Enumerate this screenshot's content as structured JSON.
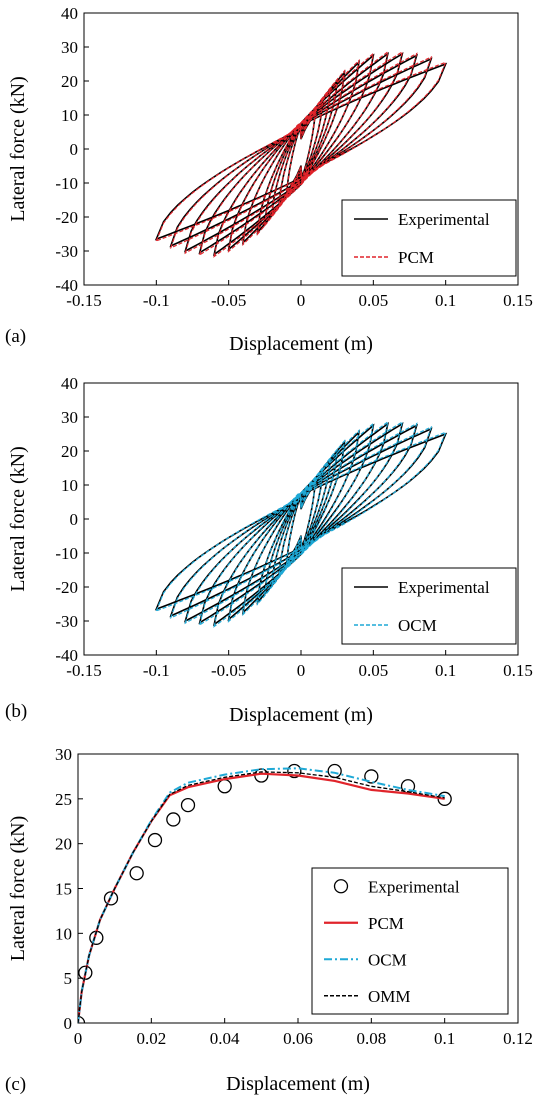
{
  "chart_data": [
    {
      "panel_label": "(a)",
      "type": "line",
      "xlabel": "Displacement (m)",
      "ylabel": "Lateral force (kN)",
      "xlim": [
        -0.15,
        0.15
      ],
      "ylim": [
        -40,
        40
      ],
      "xticks": [
        "-0.15",
        "-0.1",
        "-0.05",
        "0",
        "0.05",
        "0.1",
        "0.15"
      ],
      "yticks": [
        "40",
        "30",
        "20",
        "10",
        "0",
        "-10",
        "-20",
        "-30",
        "-40"
      ],
      "legend_position": "bottom-right",
      "series": [
        {
          "name": "Experimental",
          "style": "solid",
          "color": "#000000"
        },
        {
          "name": "PCM",
          "style": "dashed",
          "color": "#e0242b"
        }
      ],
      "hysteresis_cycles": [
        {
          "amplitude": 0.01,
          "peak_force": 12,
          "min_force": -14
        },
        {
          "amplitude": 0.015,
          "peak_force": 14,
          "min_force": -16
        },
        {
          "amplitude": 0.02,
          "peak_force": 17,
          "min_force": -19
        },
        {
          "amplitude": 0.025,
          "peak_force": 20,
          "min_force": -22
        },
        {
          "amplitude": 0.03,
          "peak_force": 22.5,
          "min_force": -24.5
        },
        {
          "amplitude": 0.04,
          "peak_force": 25.5,
          "min_force": -27.5
        },
        {
          "amplitude": 0.05,
          "peak_force": 27.5,
          "min_force": -29.5
        },
        {
          "amplitude": 0.06,
          "peak_force": 28,
          "min_force": -31
        },
        {
          "amplitude": 0.07,
          "peak_force": 28,
          "min_force": -30.5
        },
        {
          "amplitude": 0.08,
          "peak_force": 27.5,
          "min_force": -30
        },
        {
          "amplitude": 0.09,
          "peak_force": 26.5,
          "min_force": -28.5
        },
        {
          "amplitude": 0.1,
          "peak_force": 25,
          "min_force": -26.5
        }
      ]
    },
    {
      "panel_label": "(b)",
      "type": "line",
      "xlabel": "Displacement (m)",
      "ylabel": "Lateral force (kN)",
      "xlim": [
        -0.15,
        0.15
      ],
      "ylim": [
        -40,
        40
      ],
      "xticks": [
        "-0.15",
        "-0.1",
        "-0.05",
        "0",
        "0.05",
        "0.1",
        "0.15"
      ],
      "yticks": [
        "40",
        "30",
        "20",
        "10",
        "0",
        "-10",
        "-20",
        "-30",
        "-40"
      ],
      "legend_position": "bottom-right",
      "series": [
        {
          "name": "Experimental",
          "style": "solid",
          "color": "#000000"
        },
        {
          "name": "OCM",
          "style": "dashed",
          "color": "#1fa9d6"
        }
      ],
      "hysteresis_cycles": [
        {
          "amplitude": 0.01,
          "peak_force": 12,
          "min_force": -14
        },
        {
          "amplitude": 0.015,
          "peak_force": 14,
          "min_force": -16
        },
        {
          "amplitude": 0.02,
          "peak_force": 17,
          "min_force": -19
        },
        {
          "amplitude": 0.025,
          "peak_force": 20,
          "min_force": -22
        },
        {
          "amplitude": 0.03,
          "peak_force": 22.5,
          "min_force": -24.5
        },
        {
          "amplitude": 0.04,
          "peak_force": 25.5,
          "min_force": -27.5
        },
        {
          "amplitude": 0.05,
          "peak_force": 27.5,
          "min_force": -29.5
        },
        {
          "amplitude": 0.06,
          "peak_force": 28,
          "min_force": -31
        },
        {
          "amplitude": 0.07,
          "peak_force": 28,
          "min_force": -30.5
        },
        {
          "amplitude": 0.08,
          "peak_force": 27.5,
          "min_force": -30
        },
        {
          "amplitude": 0.09,
          "peak_force": 26.5,
          "min_force": -28.5
        },
        {
          "amplitude": 0.1,
          "peak_force": 25,
          "min_force": -26.5
        }
      ]
    },
    {
      "panel_label": "(c)",
      "type": "line",
      "xlabel": "Displacement (m)",
      "ylabel": "Lateral force (kN)",
      "xlim": [
        0,
        0.12
      ],
      "ylim": [
        0,
        30
      ],
      "xticks": [
        "0",
        "0.02",
        "0.04",
        "0.06",
        "0.08",
        "0.1",
        "0.12"
      ],
      "yticks": [
        "30",
        "25",
        "20",
        "15",
        "10",
        "5",
        "0"
      ],
      "legend_position": "right",
      "series": [
        {
          "name": "Experimental",
          "style": "markers",
          "color": "#000000",
          "x": [
            0,
            0.002,
            0.005,
            0.009,
            0.016,
            0.021,
            0.026,
            0.03,
            0.04,
            0.05,
            0.059,
            0.07,
            0.08,
            0.09,
            0.1
          ],
          "y": [
            0,
            5.6,
            9.5,
            13.9,
            16.7,
            20.4,
            22.7,
            24.3,
            26.4,
            27.6,
            28.1,
            28.1,
            27.5,
            26.4,
            25
          ]
        },
        {
          "name": "PCM",
          "style": "solid",
          "color": "#e0242b",
          "x": [
            0,
            0.001,
            0.003,
            0.006,
            0.01,
            0.015,
            0.02,
            0.025,
            0.03,
            0.04,
            0.05,
            0.06,
            0.07,
            0.08,
            0.09,
            0.1
          ],
          "y": [
            0,
            3.5,
            7.5,
            11.5,
            15,
            19,
            22.5,
            25.4,
            26.3,
            27.2,
            27.8,
            27.6,
            27,
            26,
            25.6,
            25
          ]
        },
        {
          "name": "OCM",
          "style": "dashdot",
          "color": "#1fa9d6",
          "x": [
            0,
            0.001,
            0.003,
            0.006,
            0.01,
            0.015,
            0.02,
            0.025,
            0.03,
            0.04,
            0.05,
            0.06,
            0.07,
            0.08,
            0.09,
            0.1
          ],
          "y": [
            0,
            3.5,
            7.5,
            11.5,
            15,
            19,
            22.6,
            25.7,
            26.8,
            27.7,
            28.3,
            28.4,
            27.9,
            26.9,
            26,
            25.3
          ]
        },
        {
          "name": "OMM",
          "style": "dashed",
          "color": "#000000",
          "x": [
            0,
            0.001,
            0.003,
            0.006,
            0.01,
            0.015,
            0.02,
            0.025,
            0.03,
            0.04,
            0.05,
            0.06,
            0.07,
            0.08,
            0.09,
            0.1
          ],
          "y": [
            0,
            3.5,
            7.5,
            11.5,
            15,
            19,
            22.5,
            25.5,
            26.5,
            27.4,
            28,
            27.9,
            27.4,
            26.4,
            25.8,
            25.1
          ]
        }
      ]
    }
  ]
}
